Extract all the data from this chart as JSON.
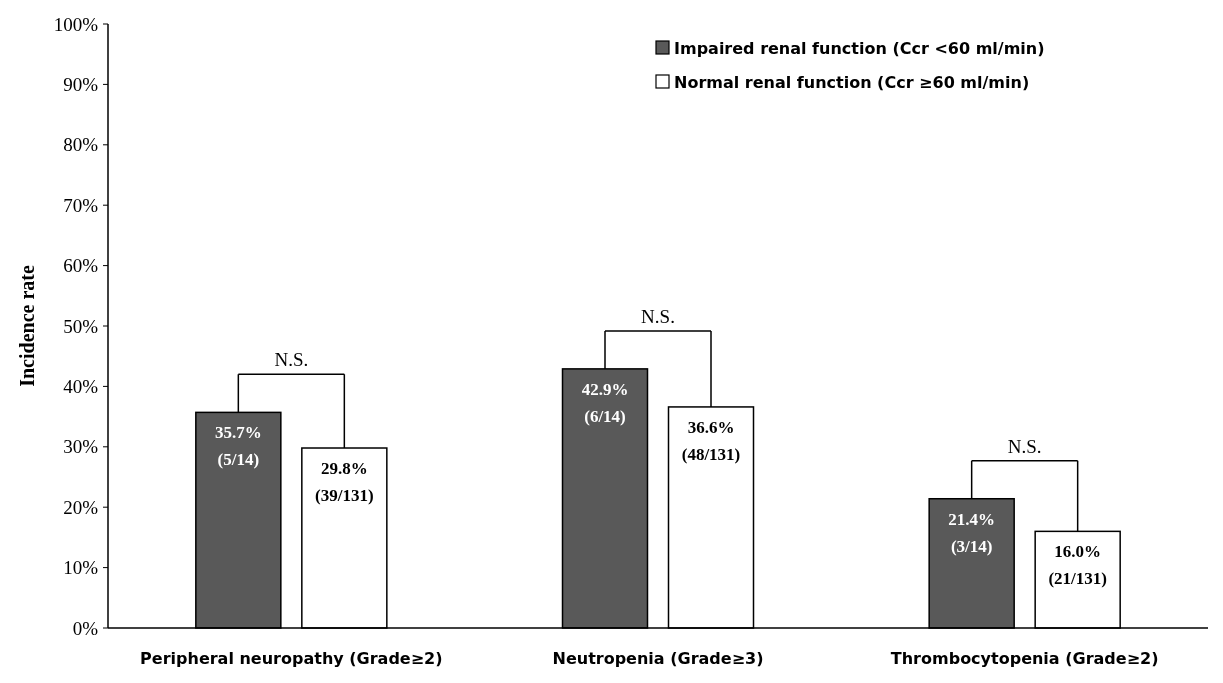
{
  "chart_data": {
    "type": "bar",
    "ylabel": "Incidence rate",
    "categories": [
      "Peripheral neuropathy (Grade≥2)",
      "Neutropenia (Grade≥3)",
      "Thrombocytopenia (Grade≥2)"
    ],
    "series": [
      {
        "name": "Impaired renal function (Ccr <60 ml/min)",
        "color": "#595959",
        "values": [
          35.7,
          42.9,
          21.4
        ],
        "value_labels": [
          "35.7% (5/14)",
          "42.9% (6/14)",
          "21.4% (3/14)"
        ]
      },
      {
        "name": "Normal renal function (Ccr ≥60 ml/min)",
        "color": "#ffffff",
        "values": [
          29.8,
          36.6,
          16.0
        ],
        "value_labels": [
          "29.8% (39/131)",
          "36.6% (48/131)",
          "16.0% (21/131)"
        ]
      }
    ],
    "ylim": [
      0,
      100
    ],
    "yticks": [
      {
        "value": 0,
        "label": "0%"
      },
      {
        "value": 10,
        "label": "10%"
      },
      {
        "value": 20,
        "label": "20%"
      },
      {
        "value": 30,
        "label": "30%"
      },
      {
        "value": 40,
        "label": "40%"
      },
      {
        "value": 50,
        "label": "50%"
      },
      {
        "value": 60,
        "label": "60%"
      },
      {
        "value": 70,
        "label": "70%"
      },
      {
        "value": 80,
        "label": "80%"
      },
      {
        "value": 90,
        "label": "90%"
      },
      {
        "value": 100,
        "label": "100%"
      }
    ],
    "grid": false,
    "legend": "top right",
    "annotations": [
      "N.S.",
      "N.S.",
      "N.S."
    ]
  }
}
